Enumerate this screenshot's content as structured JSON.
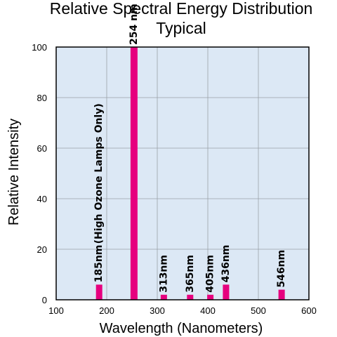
{
  "chart_data": {
    "type": "bar",
    "title": "Relative Spectral Energy Distribution",
    "subtitle": "Typical",
    "xlabel": "Wavelength (Nanometers)",
    "ylabel": "Relative Intensity",
    "xlim": [
      100,
      600
    ],
    "ylim": [
      0,
      100
    ],
    "xticks": [
      100,
      200,
      300,
      400,
      500,
      600
    ],
    "yticks": [
      0,
      20,
      40,
      60,
      80,
      100
    ],
    "grid": true,
    "colors": {
      "bar": "#e6007e",
      "plot_bg": "#dce8f5",
      "grid": "#9aa0a8"
    },
    "bars": [
      {
        "x": 185,
        "value": 6,
        "label": "185nm",
        "note": "(High Ozone Lamps Only)"
      },
      {
        "x": 254,
        "value": 100,
        "label": "254 nm"
      },
      {
        "x": 313,
        "value": 2,
        "label": "313nm"
      },
      {
        "x": 365,
        "value": 2,
        "label": "365nm"
      },
      {
        "x": 405,
        "value": 2,
        "label": "405nm"
      },
      {
        "x": 436,
        "value": 6,
        "label": "436nm"
      },
      {
        "x": 546,
        "value": 4,
        "label": "546nm"
      }
    ]
  }
}
